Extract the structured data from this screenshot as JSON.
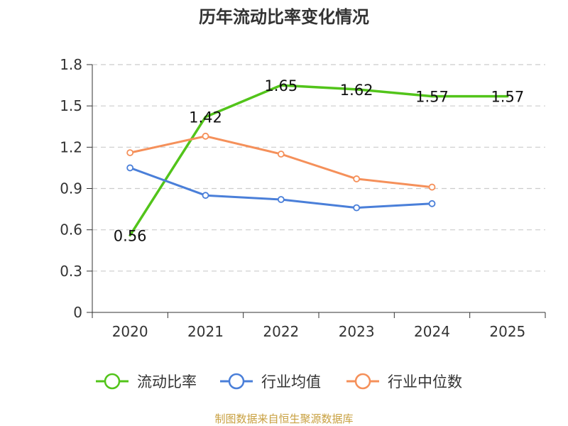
{
  "chart_data": {
    "type": "line",
    "title": "历年流动比率变化情况",
    "categories": [
      "2020",
      "2021",
      "2022",
      "2023",
      "2024",
      "2025"
    ],
    "y_ticks": [
      "0",
      "0.3",
      "0.6",
      "0.9",
      "1.2",
      "1.5",
      "1.8"
    ],
    "ylim": [
      0,
      1.8
    ],
    "grid": true,
    "legend_position": "bottom",
    "series": [
      {
        "name": "流动比率",
        "color": "#52c41a",
        "values": [
          0.56,
          1.42,
          1.65,
          1.62,
          1.57,
          1.57
        ],
        "labels": [
          "0.56",
          "1.42",
          "1.65",
          "1.62",
          "1.57",
          "1.57"
        ],
        "show_markers": false
      },
      {
        "name": "行业均值",
        "color": "#4a7fd9",
        "values": [
          1.05,
          0.85,
          0.82,
          0.76,
          0.79,
          null
        ],
        "show_markers": true
      },
      {
        "name": "行业中位数",
        "color": "#f5905a",
        "values": [
          1.16,
          1.28,
          1.15,
          0.97,
          0.91,
          null
        ],
        "show_markers": true
      }
    ],
    "source": "制图数据来自恒生聚源数据库"
  }
}
